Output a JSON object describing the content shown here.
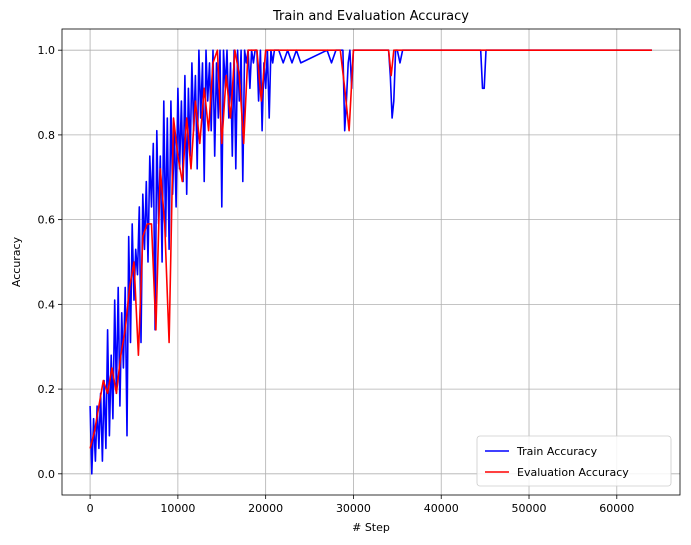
{
  "chart_data": {
    "type": "line",
    "title": "Train and Evaluation Accuracy",
    "xlabel": "# Step",
    "ylabel": "Accuracy",
    "xlim": [
      -3200,
      67200
    ],
    "ylim": [
      -0.05,
      1.05
    ],
    "xticks": [
      0,
      10000,
      20000,
      30000,
      40000,
      50000,
      60000
    ],
    "yticks": [
      0.0,
      0.2,
      0.4,
      0.6,
      0.8,
      1.0
    ],
    "xtick_labels": [
      "0",
      "10000",
      "20000",
      "30000",
      "40000",
      "50000",
      "60000"
    ],
    "ytick_labels": [
      "0.0",
      "0.2",
      "0.4",
      "0.6",
      "0.8",
      "1.0"
    ],
    "grid": true,
    "legend_position": "lower-right",
    "series": [
      {
        "name": "Train Accuracy",
        "color": "#0000ff",
        "x": [
          0,
          200,
          400,
          600,
          800,
          1000,
          1200,
          1400,
          1600,
          1800,
          2000,
          2200,
          2400,
          2600,
          2800,
          3000,
          3200,
          3400,
          3600,
          3800,
          4000,
          4200,
          4400,
          4600,
          4800,
          5000,
          5200,
          5400,
          5600,
          5800,
          6000,
          6200,
          6400,
          6600,
          6800,
          7000,
          7200,
          7400,
          7600,
          7800,
          8000,
          8200,
          8400,
          8600,
          8800,
          9000,
          9200,
          9400,
          9600,
          9800,
          10000,
          10200,
          10400,
          10600,
          10800,
          11000,
          11200,
          11400,
          11600,
          11800,
          12000,
          12200,
          12400,
          12600,
          12800,
          13000,
          13200,
          13400,
          13600,
          13800,
          14000,
          14200,
          14400,
          14600,
          14800,
          15000,
          15200,
          15400,
          15600,
          15800,
          16000,
          16200,
          16400,
          16600,
          16800,
          17000,
          17200,
          17400,
          17600,
          17800,
          18000,
          18200,
          18400,
          18600,
          18800,
          19000,
          19200,
          19400,
          19600,
          19800,
          20000,
          20200,
          20400,
          20600,
          20800,
          21000,
          21500,
          22000,
          22500,
          23000,
          23500,
          24000,
          27000,
          27500,
          28000,
          28800,
          29000,
          29200,
          29400,
          29600,
          29800,
          30000,
          30500,
          34000,
          34200,
          34400,
          34600,
          34800,
          35000,
          35300,
          35600,
          36000,
          44500,
          44700,
          44900,
          45100,
          50000,
          55000,
          60000,
          64000
        ],
        "y": [
          0.16,
          0.0,
          0.13,
          0.03,
          0.16,
          0.06,
          0.19,
          0.03,
          0.22,
          0.06,
          0.34,
          0.09,
          0.28,
          0.13,
          0.41,
          0.19,
          0.44,
          0.16,
          0.38,
          0.25,
          0.44,
          0.09,
          0.56,
          0.31,
          0.59,
          0.41,
          0.53,
          0.47,
          0.63,
          0.31,
          0.66,
          0.53,
          0.69,
          0.5,
          0.75,
          0.63,
          0.78,
          0.34,
          0.81,
          0.59,
          0.75,
          0.5,
          0.88,
          0.56,
          0.84,
          0.53,
          0.88,
          0.66,
          0.81,
          0.63,
          0.91,
          0.72,
          0.88,
          0.69,
          0.94,
          0.66,
          0.91,
          0.75,
          0.97,
          0.81,
          0.94,
          0.72,
          1.0,
          0.84,
          0.97,
          0.69,
          1.0,
          0.88,
          0.97,
          0.81,
          1.0,
          0.75,
          0.97,
          0.84,
          1.0,
          0.63,
          1.0,
          0.91,
          1.0,
          0.84,
          0.97,
          0.75,
          1.0,
          0.72,
          1.0,
          0.88,
          1.0,
          0.69,
          1.0,
          0.97,
          1.0,
          0.91,
          1.0,
          0.97,
          1.0,
          1.0,
          0.88,
          1.0,
          0.81,
          0.97,
          0.91,
          1.0,
          0.84,
          1.0,
          0.97,
          1.0,
          1.0,
          0.97,
          1.0,
          0.97,
          1.0,
          0.97,
          1.0,
          0.97,
          1.0,
          1.0,
          0.81,
          0.88,
          0.97,
          1.0,
          0.91,
          1.0,
          1.0,
          1.0,
          0.94,
          0.84,
          0.88,
          1.0,
          1.0,
          0.97,
          1.0,
          1.0,
          1.0,
          0.91,
          0.91,
          1.0,
          1.0,
          1.0,
          1.0,
          1.0
        ]
      },
      {
        "name": "Evaluation Accuracy",
        "color": "#ff0000",
        "x": [
          0,
          500,
          1000,
          1500,
          2000,
          2500,
          3000,
          3500,
          4000,
          4500,
          5000,
          5500,
          6000,
          6500,
          7000,
          7500,
          8000,
          8500,
          9000,
          9500,
          10000,
          10500,
          11000,
          11500,
          12000,
          12500,
          13000,
          13500,
          14000,
          14500,
          15000,
          15500,
          16000,
          16500,
          17000,
          17500,
          18000,
          18500,
          19000,
          19500,
          20000,
          20500,
          21000,
          22000,
          25000,
          28000,
          28500,
          29000,
          29500,
          30000,
          30500,
          34000,
          34300,
          34600,
          35000,
          40000,
          45000,
          50000,
          55000,
          60000,
          64000
        ],
        "y": [
          0.06,
          0.1,
          0.16,
          0.22,
          0.19,
          0.25,
          0.19,
          0.28,
          0.34,
          0.44,
          0.5,
          0.28,
          0.56,
          0.59,
          0.59,
          0.34,
          0.72,
          0.59,
          0.31,
          0.84,
          0.75,
          0.69,
          0.84,
          0.72,
          0.88,
          0.78,
          0.91,
          0.81,
          0.97,
          1.0,
          0.78,
          0.94,
          0.84,
          1.0,
          0.94,
          0.78,
          1.0,
          1.0,
          1.0,
          0.88,
          1.0,
          1.0,
          1.0,
          1.0,
          1.0,
          1.0,
          1.0,
          0.91,
          0.81,
          1.0,
          1.0,
          1.0,
          0.94,
          1.0,
          1.0,
          1.0,
          1.0,
          1.0,
          1.0,
          1.0,
          1.0
        ]
      }
    ]
  }
}
